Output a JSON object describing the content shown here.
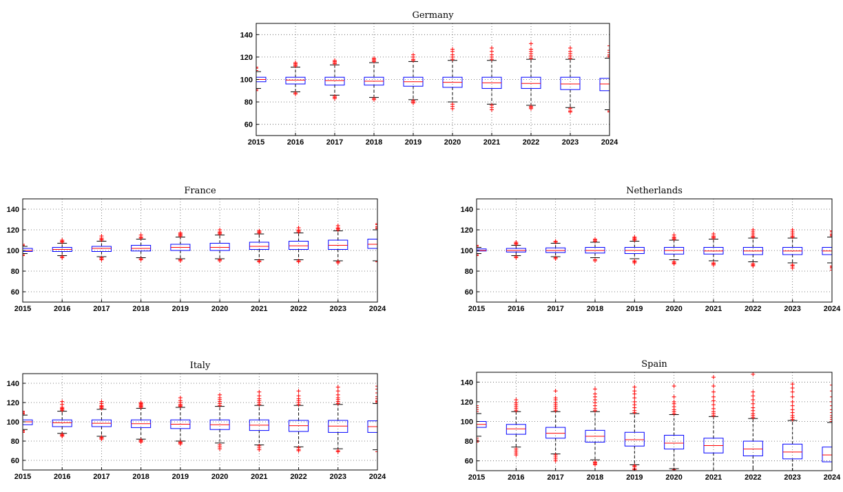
{
  "chart_data": [
    {
      "type": "box",
      "title": "Germany",
      "categories": [
        "2015",
        "2016",
        "2017",
        "2018",
        "2019",
        "2020",
        "2021",
        "2022",
        "2023",
        "2024"
      ],
      "yticks": [
        60,
        80,
        100,
        120,
        140
      ],
      "ylim": [
        50,
        150
      ],
      "grid": true,
      "boxes": [
        {
          "q1": 98,
          "median": 100,
          "q3": 102,
          "whisker_low": 92,
          "whisker_high": 107,
          "outliers_low": [
            90,
            91
          ],
          "outliers_high": [
            108,
            110,
            111
          ]
        },
        {
          "q1": 96,
          "median": 99.5,
          "q3": 102,
          "whisker_low": 89,
          "whisker_high": 111,
          "outliers_low": [
            87,
            88
          ],
          "outliers_high": [
            112,
            113,
            114,
            115
          ]
        },
        {
          "q1": 95,
          "median": 99,
          "q3": 102,
          "whisker_low": 86,
          "whisker_high": 113,
          "outliers_low": [
            83,
            84,
            85
          ],
          "outliers_high": [
            114,
            115,
            116,
            117
          ]
        },
        {
          "q1": 95,
          "median": 98.5,
          "q3": 102,
          "whisker_low": 84,
          "whisker_high": 115,
          "outliers_low": [
            82,
            83
          ],
          "outliers_high": [
            116,
            117,
            118,
            119
          ]
        },
        {
          "q1": 94,
          "median": 98,
          "q3": 102,
          "whisker_low": 82,
          "whisker_high": 116,
          "outliers_low": [
            79,
            80,
            81
          ],
          "outliers_high": [
            117,
            118,
            120,
            122
          ]
        },
        {
          "q1": 93,
          "median": 97.5,
          "q3": 102,
          "whisker_low": 80,
          "whisker_high": 117,
          "outliers_low": [
            74,
            76,
            78
          ],
          "outliers_high": [
            118,
            120,
            122,
            125,
            127
          ]
        },
        {
          "q1": 92,
          "median": 97,
          "q3": 102,
          "whisker_low": 78,
          "whisker_high": 117,
          "outliers_low": [
            73,
            75,
            77
          ],
          "outliers_high": [
            118,
            120,
            122,
            125,
            128
          ]
        },
        {
          "q1": 92,
          "median": 96.5,
          "q3": 102,
          "whisker_low": 77,
          "whisker_high": 118,
          "outliers_low": [
            74,
            75,
            76
          ],
          "outliers_high": [
            119,
            121,
            123,
            125,
            127,
            132
          ]
        },
        {
          "q1": 91,
          "median": 96,
          "q3": 102,
          "whisker_low": 75,
          "whisker_high": 118,
          "outliers_low": [
            71,
            72,
            74
          ],
          "outliers_high": [
            119,
            121,
            123,
            125,
            128
          ]
        },
        {
          "q1": 90,
          "median": 96,
          "q3": 101,
          "whisker_low": 73,
          "whisker_high": 119,
          "outliers_low": [
            71,
            72
          ],
          "outliers_high": [
            120,
            121,
            122,
            124,
            126,
            130
          ]
        }
      ]
    },
    {
      "type": "box",
      "title": "France",
      "categories": [
        "2015",
        "2016",
        "2017",
        "2018",
        "2019",
        "2020",
        "2021",
        "2022",
        "2023",
        "2024"
      ],
      "yticks": [
        60,
        80,
        100,
        120,
        140
      ],
      "ylim": [
        50,
        150
      ],
      "grid": true,
      "boxes": [
        {
          "q1": 99,
          "median": 100,
          "q3": 102,
          "whisker_low": 97,
          "whisker_high": 104,
          "outliers_low": [
            95,
            96
          ],
          "outliers_high": [
            105,
            106
          ]
        },
        {
          "q1": 99,
          "median": 101,
          "q3": 103,
          "whisker_low": 95,
          "whisker_high": 107,
          "outliers_low": [
            93,
            94
          ],
          "outliers_high": [
            108,
            109,
            110
          ]
        },
        {
          "q1": 99,
          "median": 102,
          "q3": 104,
          "whisker_low": 94,
          "whisker_high": 109,
          "outliers_low": [
            91,
            92,
            93
          ],
          "outliers_high": [
            110,
            111,
            112,
            114
          ]
        },
        {
          "q1": 99.5,
          "median": 102,
          "q3": 105,
          "whisker_low": 93,
          "whisker_high": 111,
          "outliers_low": [
            91,
            92
          ],
          "outliers_high": [
            112,
            113,
            115
          ]
        },
        {
          "q1": 100,
          "median": 103,
          "q3": 106,
          "whisker_low": 92,
          "whisker_high": 113,
          "outliers_low": [
            90,
            91
          ],
          "outliers_high": [
            114,
            115,
            116,
            117
          ]
        },
        {
          "q1": 100,
          "median": 103,
          "q3": 107,
          "whisker_low": 92,
          "whisker_high": 115,
          "outliers_low": [
            90,
            91
          ],
          "outliers_high": [
            116,
            117,
            118,
            120
          ]
        },
        {
          "q1": 101,
          "median": 104,
          "q3": 108,
          "whisker_low": 91,
          "whisker_high": 116,
          "outliers_low": [
            89,
            90
          ],
          "outliers_high": [
            117,
            118,
            119
          ]
        },
        {
          "q1": 101,
          "median": 104.5,
          "q3": 109,
          "whisker_low": 91,
          "whisker_high": 117,
          "outliers_low": [
            89,
            90
          ],
          "outliers_high": [
            118,
            119,
            120,
            122
          ]
        },
        {
          "q1": 101,
          "median": 105,
          "q3": 110,
          "whisker_low": 90,
          "whisker_high": 119,
          "outliers_low": [
            88,
            89
          ],
          "outliers_high": [
            120,
            121,
            122,
            124
          ]
        },
        {
          "q1": 102,
          "median": 106,
          "q3": 111,
          "whisker_low": 90,
          "whisker_high": 120,
          "outliers_low": [
            89
          ],
          "outliers_high": [
            121,
            122,
            123,
            125,
            126
          ]
        }
      ]
    },
    {
      "type": "box",
      "title": "Netherlands",
      "categories": [
        "2015",
        "2016",
        "2017",
        "2018",
        "2019",
        "2020",
        "2021",
        "2022",
        "2023",
        "2024"
      ],
      "yticks": [
        60,
        80,
        100,
        120,
        140
      ],
      "ylim": [
        50,
        150
      ],
      "grid": true,
      "boxes": [
        {
          "q1": 99.5,
          "median": 100,
          "q3": 101.5,
          "whisker_low": 97,
          "whisker_high": 103,
          "outliers_low": [
            95,
            96
          ],
          "outliers_high": [
            104,
            105
          ]
        },
        {
          "q1": 98.5,
          "median": 100,
          "q3": 102,
          "whisker_low": 95,
          "whisker_high": 105,
          "outliers_low": [
            93,
            94
          ],
          "outliers_high": [
            106,
            107,
            108
          ]
        },
        {
          "q1": 98,
          "median": 100,
          "q3": 102.5,
          "whisker_low": 94,
          "whisker_high": 107,
          "outliers_low": [
            92,
            93
          ],
          "outliers_high": [
            108,
            109
          ]
        },
        {
          "q1": 97.5,
          "median": 100,
          "q3": 103,
          "whisker_low": 93,
          "whisker_high": 108,
          "outliers_low": [
            90,
            91
          ],
          "outliers_high": [
            109,
            110,
            111
          ]
        },
        {
          "q1": 97,
          "median": 100,
          "q3": 103,
          "whisker_low": 92,
          "whisker_high": 109,
          "outliers_low": [
            88,
            89,
            90
          ],
          "outliers_high": [
            110,
            111,
            112,
            113
          ]
        },
        {
          "q1": 96.5,
          "median": 100,
          "q3": 103,
          "whisker_low": 91,
          "whisker_high": 110,
          "outliers_low": [
            87,
            88,
            89
          ],
          "outliers_high": [
            111,
            112,
            113,
            115
          ]
        },
        {
          "q1": 96.5,
          "median": 99.5,
          "q3": 103,
          "whisker_low": 90,
          "whisker_high": 111,
          "outliers_low": [
            86,
            87,
            88
          ],
          "outliers_high": [
            112,
            113,
            114,
            116
          ]
        },
        {
          "q1": 96,
          "median": 99.5,
          "q3": 103,
          "whisker_low": 89,
          "whisker_high": 112,
          "outliers_low": [
            85,
            86,
            87
          ],
          "outliers_high": [
            113,
            114,
            116,
            118,
            120
          ]
        },
        {
          "q1": 96,
          "median": 99.5,
          "q3": 103,
          "whisker_low": 88,
          "whisker_high": 112,
          "outliers_low": [
            83,
            85,
            86
          ],
          "outliers_high": [
            113,
            114,
            116,
            118,
            120
          ]
        },
        {
          "q1": 96,
          "median": 99.5,
          "q3": 103,
          "whisker_low": 88,
          "whisker_high": 113,
          "outliers_low": [
            81,
            83,
            84,
            85
          ],
          "outliers_high": [
            114,
            115,
            116,
            118,
            119
          ]
        }
      ]
    },
    {
      "type": "box",
      "title": "Italy",
      "categories": [
        "2015",
        "2016",
        "2017",
        "2018",
        "2019",
        "2020",
        "2021",
        "2022",
        "2023",
        "2024"
      ],
      "yticks": [
        60,
        80,
        100,
        120,
        140
      ],
      "ylim": [
        50,
        150
      ],
      "grid": true,
      "boxes": [
        {
          "q1": 97,
          "median": 100,
          "q3": 102,
          "whisker_low": 92,
          "whisker_high": 107,
          "outliers_low": [
            89,
            90,
            91
          ],
          "outliers_high": [
            108,
            109,
            110,
            111
          ]
        },
        {
          "q1": 95,
          "median": 99,
          "q3": 102,
          "whisker_low": 88,
          "whisker_high": 111,
          "outliers_low": [
            85,
            86,
            87
          ],
          "outliers_high": [
            112,
            113,
            114,
            115,
            118,
            121
          ]
        },
        {
          "q1": 95,
          "median": 98.5,
          "q3": 102,
          "whisker_low": 85,
          "whisker_high": 113,
          "outliers_low": [
            82,
            83,
            84
          ],
          "outliers_high": [
            114,
            115,
            116,
            117,
            119,
            121
          ]
        },
        {
          "q1": 94,
          "median": 98,
          "q3": 102,
          "whisker_low": 82,
          "whisker_high": 114,
          "outliers_low": [
            79,
            80,
            81
          ],
          "outliers_high": [
            115,
            116,
            117,
            118,
            119,
            120
          ]
        },
        {
          "q1": 93,
          "median": 97.5,
          "q3": 102,
          "whisker_low": 80,
          "whisker_high": 115,
          "outliers_low": [
            77,
            78,
            79
          ],
          "outliers_high": [
            116,
            117,
            118,
            120,
            122,
            125
          ]
        },
        {
          "q1": 92,
          "median": 97,
          "q3": 102,
          "whisker_low": 78,
          "whisker_high": 116,
          "outliers_low": [
            72,
            74,
            76
          ],
          "outliers_high": [
            117,
            119,
            121,
            123,
            125,
            128
          ]
        },
        {
          "q1": 91,
          "median": 96.5,
          "q3": 102,
          "whisker_low": 76,
          "whisker_high": 117,
          "outliers_low": [
            71,
            73,
            75
          ],
          "outliers_high": [
            118,
            120,
            122,
            124,
            127,
            131
          ]
        },
        {
          "q1": 90,
          "median": 96,
          "q3": 101.5,
          "whisker_low": 74,
          "whisker_high": 117,
          "outliers_low": [
            70,
            71,
            73
          ],
          "outliers_high": [
            118,
            120,
            122,
            124,
            127,
            132
          ]
        },
        {
          "q1": 89,
          "median": 95.5,
          "q3": 101.5,
          "whisker_low": 72,
          "whisker_high": 118,
          "outliers_low": [
            69,
            70
          ],
          "outliers_high": [
            119,
            121,
            123,
            125,
            128,
            132,
            136
          ]
        },
        {
          "q1": 89,
          "median": 95,
          "q3": 101,
          "whisker_low": 71,
          "whisker_high": 119,
          "outliers_low": [
            69
          ],
          "outliers_high": [
            120,
            121,
            122,
            124,
            126,
            130,
            134,
            137
          ]
        }
      ]
    },
    {
      "type": "box",
      "title": "Spain",
      "categories": [
        "2015",
        "2016",
        "2017",
        "2018",
        "2019",
        "2020",
        "2021",
        "2022",
        "2023",
        "2024"
      ],
      "yticks": [
        60,
        80,
        100,
        120,
        140
      ],
      "ylim": [
        50,
        150
      ],
      "grid": true,
      "boxes": [
        {
          "q1": 94,
          "median": 97,
          "q3": 100,
          "whisker_low": 85,
          "whisker_high": 108,
          "outliers_low": [
            79,
            80,
            81,
            83
          ],
          "outliers_high": [
            110,
            112,
            114,
            116
          ]
        },
        {
          "q1": 87,
          "median": 92.5,
          "q3": 97,
          "whisker_low": 74,
          "whisker_high": 110,
          "outliers_low": [
            66,
            68,
            70,
            72
          ],
          "outliers_high": [
            111,
            113,
            115,
            117,
            119,
            122
          ]
        },
        {
          "q1": 83,
          "median": 88,
          "q3": 94,
          "whisker_low": 67,
          "whisker_high": 110,
          "outliers_low": [
            60,
            62,
            64,
            66
          ],
          "outliers_high": [
            111,
            113,
            115,
            117,
            119,
            122,
            124,
            131
          ]
        },
        {
          "q1": 79,
          "median": 85,
          "q3": 91,
          "whisker_low": 61,
          "whisker_high": 110,
          "outliers_low": [
            56,
            57,
            58,
            59
          ],
          "outliers_high": [
            111,
            113,
            116,
            119,
            122,
            125,
            128,
            133
          ]
        },
        {
          "q1": 75,
          "median": 81.5,
          "q3": 89,
          "whisker_low": 56,
          "whisker_high": 108,
          "outliers_low": [
            51,
            52,
            54,
            55
          ],
          "outliers_high": [
            109,
            111,
            114,
            117,
            120,
            124,
            128,
            131,
            135
          ]
        },
        {
          "q1": 72,
          "median": 78,
          "q3": 86,
          "whisker_low": 52,
          "whisker_high": 107,
          "outliers_low": [
            50,
            51
          ],
          "outliers_high": [
            108,
            110,
            112,
            115,
            118,
            120,
            125,
            136
          ]
        },
        {
          "q1": 68,
          "median": 75.5,
          "q3": 83,
          "whisker_low": 50,
          "whisker_high": 105,
          "outliers_low": [],
          "outliers_high": [
            106,
            108,
            110,
            113,
            117,
            121,
            125,
            130,
            136,
            145
          ]
        },
        {
          "q1": 65,
          "median": 72,
          "q3": 80,
          "whisker_low": 50,
          "whisker_high": 103,
          "outliers_low": [],
          "outliers_high": [
            104,
            106,
            108,
            111,
            114,
            118,
            122,
            126,
            130,
            148
          ]
        },
        {
          "q1": 62,
          "median": 69,
          "q3": 77,
          "whisker_low": 50,
          "whisker_high": 101,
          "outliers_low": [],
          "outliers_high": [
            102,
            104,
            106,
            109,
            112,
            116,
            120,
            125,
            130,
            134,
            138
          ]
        },
        {
          "q1": 59,
          "median": 66,
          "q3": 74,
          "whisker_low": 50,
          "whisker_high": 99,
          "outliers_low": [],
          "outliers_high": [
            100,
            102,
            104,
            106,
            109,
            112,
            116,
            120,
            125,
            131,
            137
          ]
        }
      ]
    }
  ]
}
